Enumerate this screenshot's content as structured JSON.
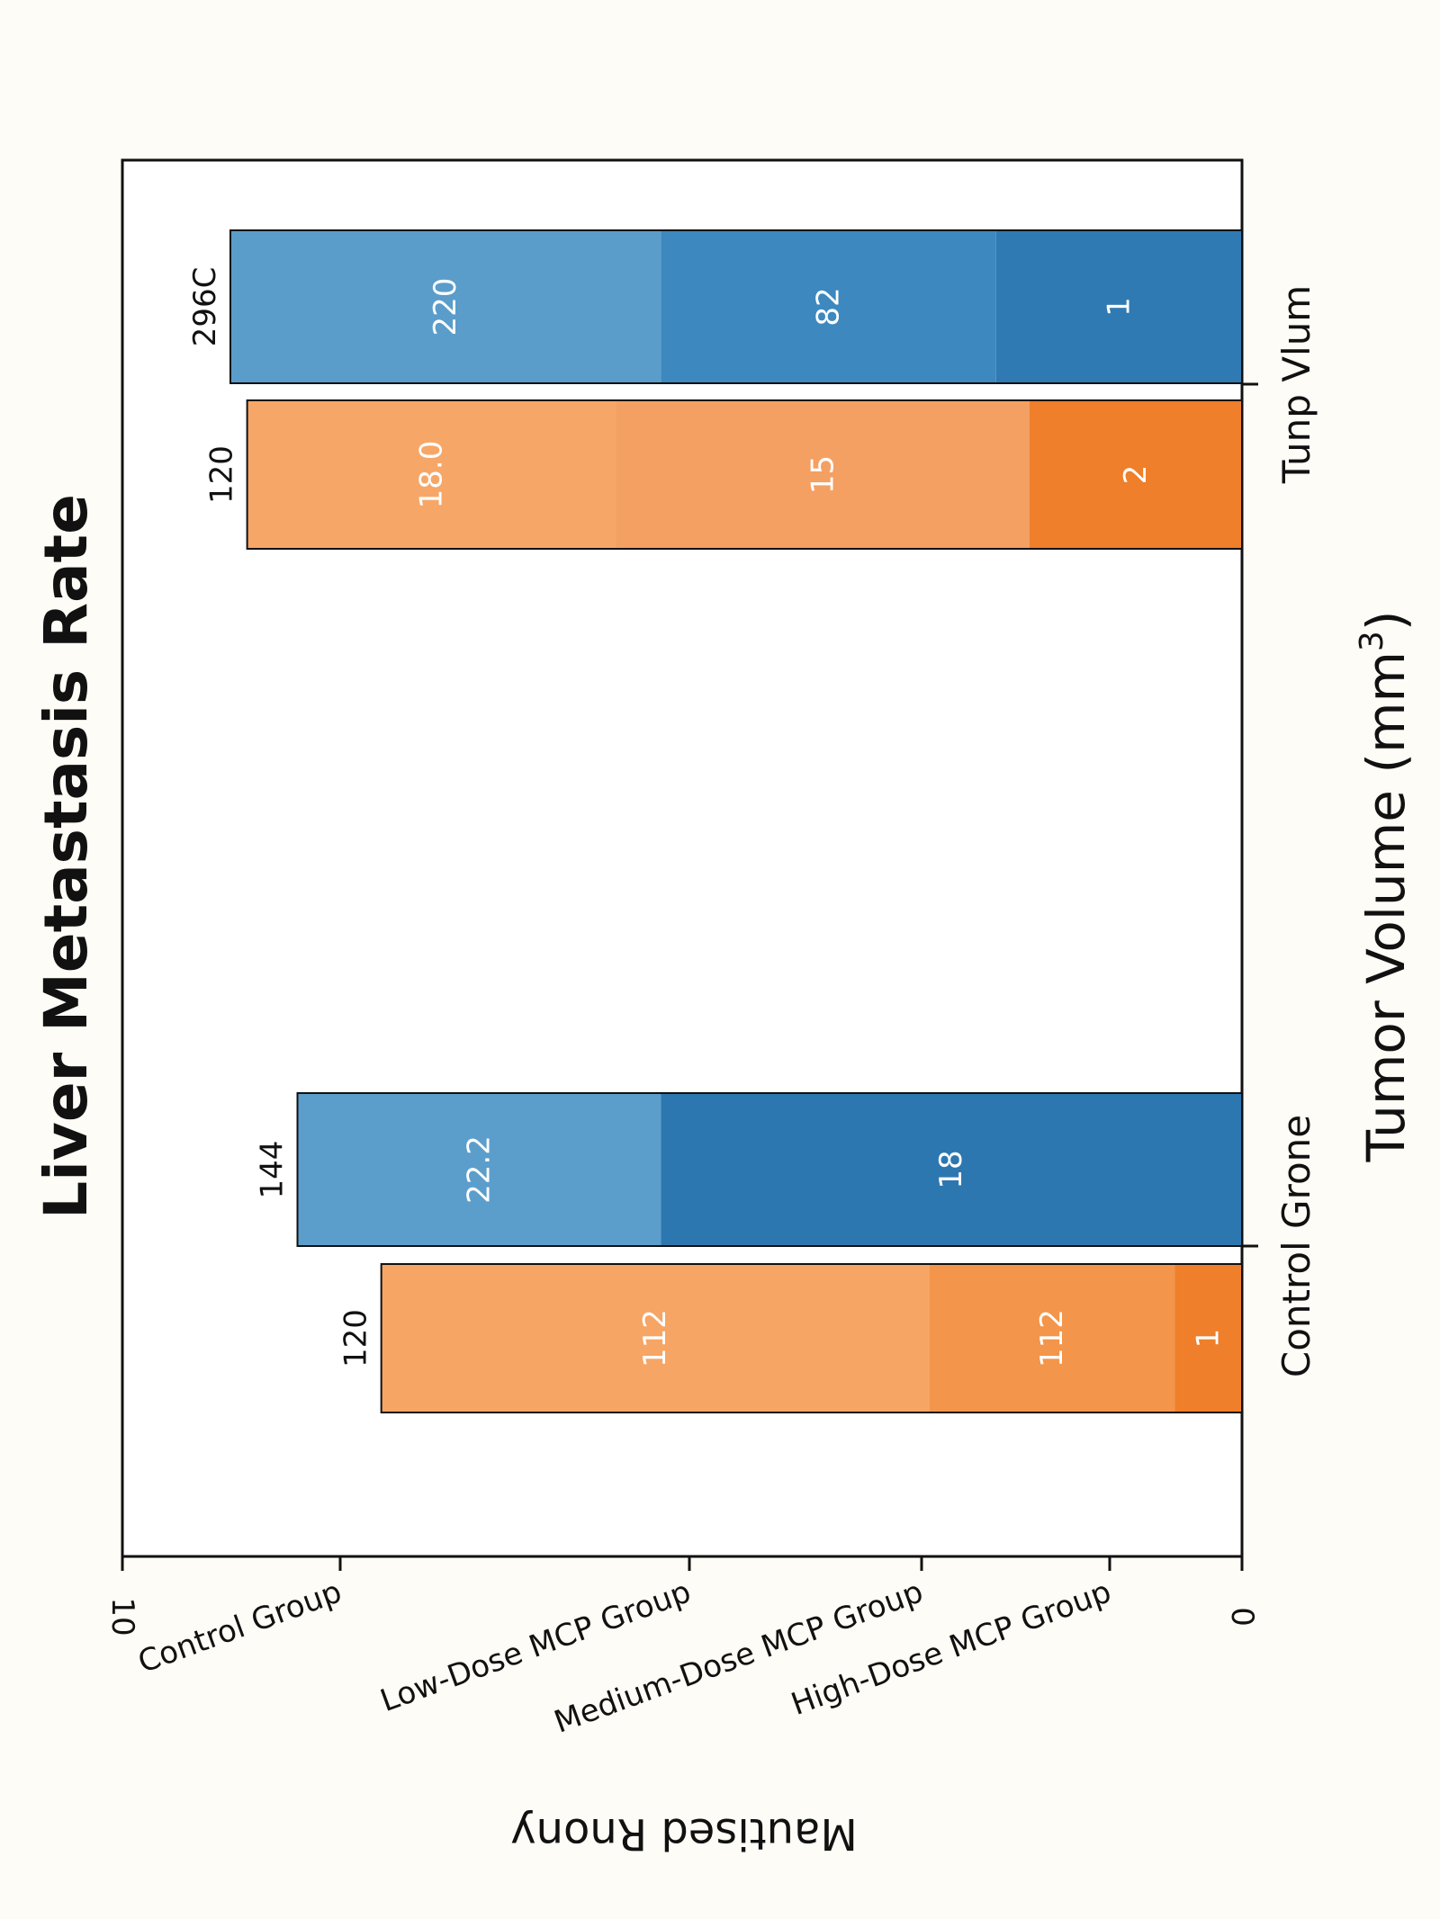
{
  "chart_data": {
    "type": "bar",
    "orientation": "horizontal",
    "stacked": true,
    "rotated": "90deg clockwise",
    "title": "Liver Metastasis Rate",
    "xlabel": "Tumor Volume (mm",
    "xlabel_sup": "3",
    "xlabel_suffix": ")",
    "ylabel": "Mautised Rnony",
    "xlim": [
      0,
      10
    ],
    "x_ticks": [
      {
        "value": 10,
        "label": "10"
      },
      {
        "value": 9,
        "label": "Control Group"
      },
      {
        "value": 6.1,
        "label": "Low-Dose MCP Group"
      },
      {
        "value": 2.85,
        "label": "Medium-Dose MCP Group"
      },
      {
        "value": 1.2,
        "label": "High-Dose MCP Group"
      },
      {
        "value": 0,
        "label": "0"
      }
    ],
    "categories": [
      "Control Grone",
      "Tunp Vlum"
    ],
    "series": [
      {
        "name": "",
        "color": "#f08a3e",
        "bars": [
          {
            "total_label": "120",
            "total": 7.7,
            "segments": [
              {
                "value": 0.6,
                "label": "1",
                "color": "#ef7f2a"
              },
              {
                "value": 2.2,
                "label": "112",
                "color": "#f3954a"
              },
              {
                "value": 4.9,
                "label": "112",
                "color": "#f6a565"
              }
            ]
          },
          {
            "total_label": "120",
            "total": 8.9,
            "segments": [
              {
                "value": 1.9,
                "label": "2",
                "color": "#ef7f2a"
              },
              {
                "value": 3.7,
                "label": "15",
                "color": "#f4a062"
              },
              {
                "value": 3.3,
                "label": "18.0",
                "color": "#f6a767"
              }
            ]
          }
        ]
      },
      {
        "name": "",
        "color": "#3a86bd",
        "bars": [
          {
            "total_label": "144",
            "total": 8.45,
            "segments": [
              {
                "value": 5.2,
                "label": "18",
                "color": "#2d77b0"
              },
              {
                "value": 3.25,
                "label": "22.2",
                "color": "#5b9ecb"
              }
            ]
          },
          {
            "total_label": "296C",
            "total": 9.05,
            "segments": [
              {
                "value": 2.2,
                "label": "1",
                "color": "#2f7ab2"
              },
              {
                "value": 3.0,
                "label": "82",
                "color": "#3c88bf"
              },
              {
                "value": 3.85,
                "label": "220",
                "color": "#5a9dca"
              }
            ]
          }
        ]
      }
    ],
    "grid": false,
    "legend": "none"
  }
}
